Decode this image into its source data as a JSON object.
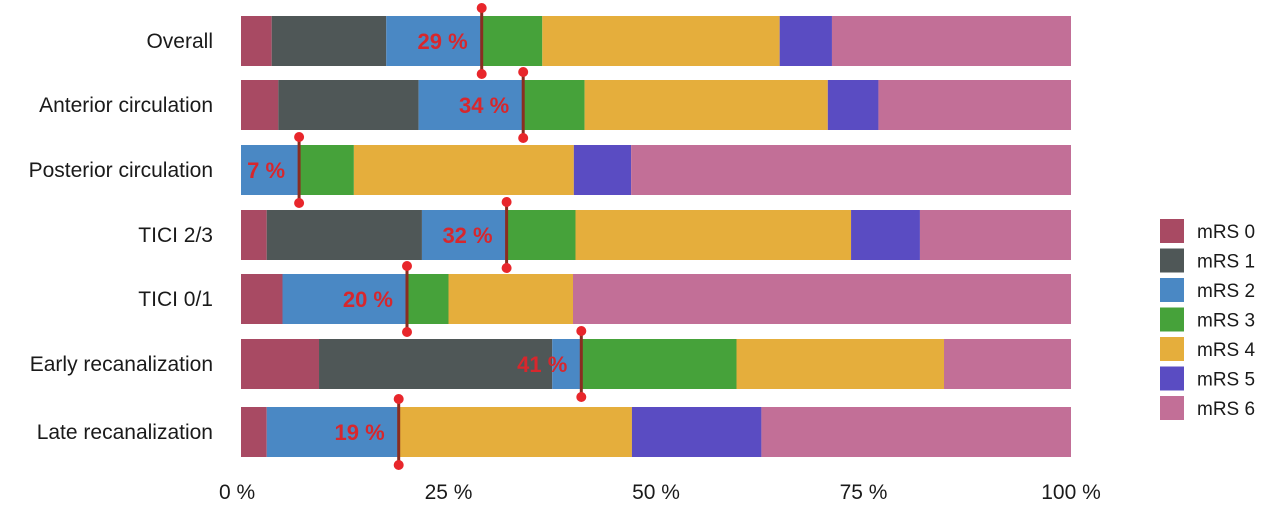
{
  "chart_data": {
    "type": "bar",
    "orientation": "horizontal",
    "stacked": true,
    "normalized": true,
    "categories": [
      "Overall",
      "Anterior circulation",
      "Posterior circulation",
      "TICI 2/3",
      "TICI 0/1",
      "Early recanalization",
      "Late recanalization"
    ],
    "series": [
      {
        "name": "mRS 0",
        "color": "#a84a63",
        "values": [
          3.7,
          4.5,
          0,
          3.1,
          5.0,
          9.4,
          3.1
        ]
      },
      {
        "name": "mRS 1",
        "color": "#4f5757",
        "values": [
          13.8,
          16.9,
          0,
          18.7,
          0,
          28.1,
          0
        ]
      },
      {
        "name": "mRS 2",
        "color": "#4a88c4",
        "values": [
          11.5,
          12.6,
          7.0,
          10.2,
          15.0,
          3.4,
          15.8
        ]
      },
      {
        "name": "mRS 3",
        "color": "#46a23a",
        "values": [
          7.3,
          7.4,
          6.6,
          8.3,
          5.0,
          18.8,
          0
        ]
      },
      {
        "name": "mRS 4",
        "color": "#e5ae3c",
        "values": [
          28.6,
          29.3,
          26.5,
          33.2,
          15.0,
          25.0,
          28.2
        ]
      },
      {
        "name": "mRS 5",
        "color": "#5a4cc2",
        "values": [
          6.3,
          6.1,
          6.9,
          8.3,
          0,
          0,
          15.6
        ]
      },
      {
        "name": "mRS 6",
        "color": "#c26f97",
        "values": [
          28.8,
          23.2,
          53.0,
          18.2,
          60.0,
          15.3,
          37.3
        ]
      }
    ],
    "marker_values": [
      29,
      34,
      7,
      32,
      20,
      41,
      19
    ],
    "marker_labels": [
      "29 %",
      "34 %",
      "7 %",
      "32 %",
      "20 %",
      "41 %",
      "19 %"
    ],
    "x_ticks": [
      0,
      25,
      50,
      75,
      100
    ],
    "x_tick_labels": [
      "0 %",
      "25 %",
      "50 %",
      "75 %",
      "100 %"
    ],
    "xlim": [
      0,
      100
    ],
    "legend_position": "right",
    "marker_color": "#e8262b",
    "marker_line_color": "#8a2d20",
    "label_color": "#d7272d"
  }
}
